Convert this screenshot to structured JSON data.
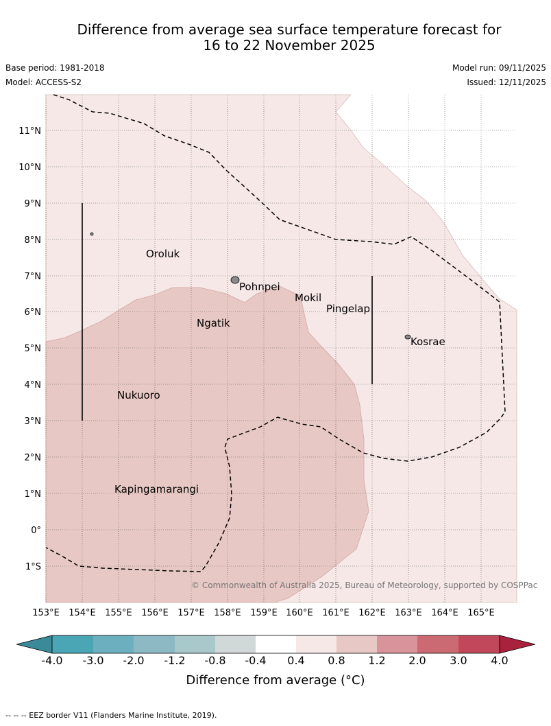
{
  "header": {
    "title_line1": "Difference from average sea surface temperature forecast for",
    "title_line2": "16 to 22 November 2025",
    "base_period": "Base period: 1981-2018",
    "model": "Model: ACCESS-S2",
    "model_run": "Model run: 09/11/2025",
    "issued": "Issued: 12/11/2025"
  },
  "map": {
    "lat_labels": [
      "11°N",
      "10°N",
      "9°N",
      "8°N",
      "7°N",
      "6°N",
      "5°N",
      "4°N",
      "3°N",
      "2°N",
      "1°N",
      "0°",
      "1°S"
    ],
    "lon_labels": [
      "153°E",
      "154°E",
      "155°E",
      "156°E",
      "157°E",
      "158°E",
      "159°E",
      "160°E",
      "161°E",
      "162°E",
      "163°E",
      "164°E",
      "165°E"
    ],
    "places": [
      "Oroluk",
      "Pohnpei",
      "Mokil",
      "Pingelap",
      "Ngatik",
      "Kosrae",
      "Nukuoro",
      "Kapingamarangi"
    ],
    "copyright": "© Commonwealth of Australia 2025, Bureau of Meteorology, supported by COSPPac",
    "colors": {
      "anomaly_04_08": "#f5e8e7",
      "anomaly_08_12": "#e8c8c4",
      "eez": "#000000"
    }
  },
  "colorbar": {
    "ticks": [
      "-4.0",
      "-3.0",
      "-2.0",
      "-1.2",
      "-0.8",
      "-0.4",
      "0.4",
      "0.8",
      "1.2",
      "2.0",
      "3.0",
      "4.0"
    ],
    "colors": [
      "#3b8a99",
      "#4aa6b5",
      "#6cb0bf",
      "#8cb9c4",
      "#a9c8cc",
      "#d1d8d8",
      "#ffffff",
      "#f5e8e7",
      "#e8c8c4",
      "#d9939a",
      "#cc6a74",
      "#c0485a",
      "#a8213d"
    ],
    "label": "Difference from average (°C)"
  },
  "footnote": "--  --  -- EEZ border V11 (Flanders Marine Institute, 2019)."
}
